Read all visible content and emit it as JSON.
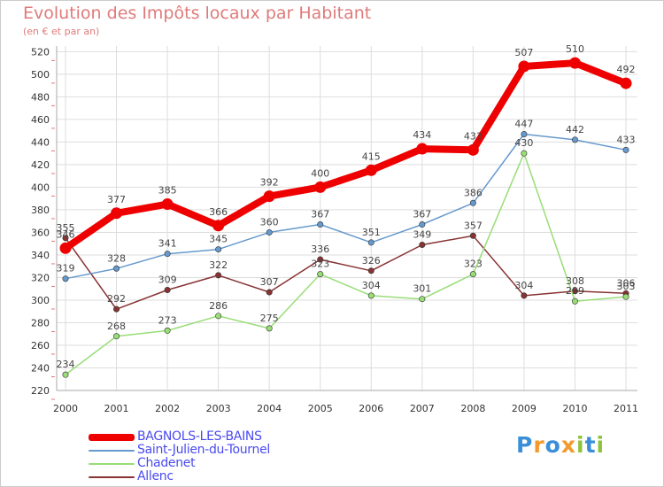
{
  "title": "Evolution des Impôts locaux par Habitant",
  "subtitle": "(en € et par an)",
  "logo": {
    "text": "Proxiti",
    "colors": [
      "#3a8fd8",
      "#f29a2e",
      "#3a8fd8",
      "#f29a2e",
      "#8cc43c",
      "#3a8fd8",
      "#8cc43c"
    ]
  },
  "chart_data": {
    "type": "line",
    "title": "Evolution des Impôts locaux par Habitant",
    "subtitle": "(en € et par an)",
    "xlabel": "",
    "ylabel": "",
    "x": [
      "2000",
      "2001",
      "2002",
      "2003",
      "2004",
      "2005",
      "2006",
      "2007",
      "2008",
      "2009",
      "2010",
      "2011"
    ],
    "yticks": [
      220,
      240,
      260,
      280,
      300,
      320,
      340,
      360,
      380,
      400,
      420,
      440,
      460,
      480,
      500,
      520
    ],
    "ylim": [
      220,
      525
    ],
    "grid": true,
    "legend": "bottom-left",
    "series": [
      {
        "name": "BAGNOLS-LES-BAINS",
        "color": "#ee0000",
        "values": [
          346,
          377,
          385,
          366,
          392,
          400,
          415,
          434,
          433,
          507,
          510,
          492
        ],
        "labels": [
          "346",
          "377",
          "385",
          "366",
          "392",
          "400",
          "415",
          "434",
          "433",
          "507",
          "510",
          "492"
        ]
      },
      {
        "name": "Saint-Julien-du-Tournel",
        "color": "#6699cc",
        "values": [
          319,
          328,
          341,
          345,
          360,
          367,
          351,
          367,
          386,
          447,
          442,
          433
        ],
        "labels": [
          "319",
          "328",
          "341",
          "345",
          "360",
          "367",
          "351",
          "367",
          "386",
          "447",
          "442",
          "433"
        ]
      },
      {
        "name": "Chadenet",
        "color": "#99dd77",
        "values": [
          234,
          268,
          273,
          286,
          275,
          323,
          304,
          301,
          323,
          430,
          299,
          303
        ],
        "labels": [
          "234",
          "268",
          "273",
          "286",
          "275",
          "323",
          "304",
          "301",
          "323",
          "430",
          "299",
          "303"
        ]
      },
      {
        "name": "Allenc",
        "color": "#883333",
        "values": [
          355,
          292,
          309,
          322,
          307,
          336,
          326,
          349,
          357,
          304,
          308,
          306
        ],
        "labels": [
          "355",
          "292",
          "309",
          "322",
          "307",
          "336",
          "326",
          "349",
          "357",
          "304",
          "308",
          "306"
        ]
      }
    ]
  }
}
